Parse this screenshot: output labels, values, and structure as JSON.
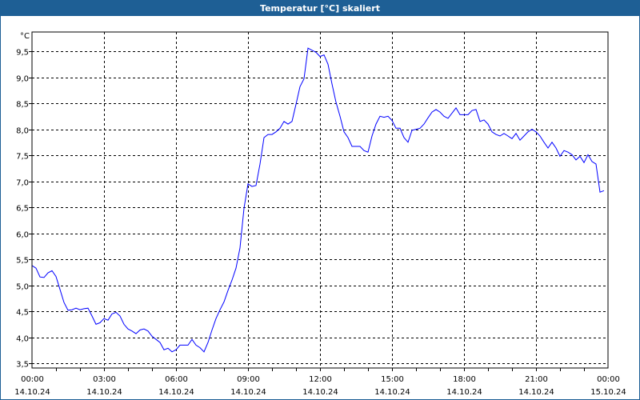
{
  "window": {
    "title": "Temperatur [°C] skaliert",
    "titlebar_color": "#1e5f95"
  },
  "chart_data": {
    "type": "line",
    "title": "Temperatur [°C] skaliert",
    "ylabel": "°C",
    "xlabel": "",
    "ylim": [
      3.41,
      9.87
    ],
    "yticks": [
      3.5,
      4.0,
      4.5,
      5.0,
      5.5,
      6.0,
      6.5,
      7.0,
      7.5,
      8.0,
      8.5,
      9.0,
      9.5
    ],
    "ytick_labels": [
      "3,5",
      "4,0",
      "4,5",
      "5,0",
      "5,5",
      "6,0",
      "6,5",
      "7,0",
      "7,5",
      "8,0",
      "8,5",
      "9,0",
      "9,5"
    ],
    "xlim_hours": [
      0,
      24
    ],
    "xticks": [
      {
        "hour": 0,
        "time": "00:00",
        "date": "14.10.24"
      },
      {
        "hour": 3,
        "time": "03:00",
        "date": "14.10.24"
      },
      {
        "hour": 6,
        "time": "06:00",
        "date": "14.10.24"
      },
      {
        "hour": 9,
        "time": "09:00",
        "date": "14.10.24"
      },
      {
        "hour": 12,
        "time": "12:00",
        "date": "14.10.24"
      },
      {
        "hour": 15,
        "time": "15:00",
        "date": "14.10.24"
      },
      {
        "hour": 18,
        "time": "18:00",
        "date": "14.10.24"
      },
      {
        "hour": 21,
        "time": "21:00",
        "date": "14.10.24"
      },
      {
        "hour": 24,
        "time": "00:00",
        "date": "15.10.24"
      }
    ],
    "grid": true,
    "series": [
      {
        "name": "Temperatur",
        "color": "#0000ff",
        "start_hour": 0,
        "interval_minutes": 10,
        "values": [
          5.38,
          5.33,
          5.16,
          5.15,
          5.24,
          5.28,
          5.17,
          4.92,
          4.67,
          4.52,
          4.53,
          4.56,
          4.53,
          4.55,
          4.56,
          4.41,
          4.25,
          4.28,
          4.36,
          4.33,
          4.45,
          4.48,
          4.41,
          4.25,
          4.16,
          4.12,
          4.07,
          4.14,
          4.16,
          4.12,
          4.02,
          3.96,
          3.9,
          3.76,
          3.79,
          3.72,
          3.76,
          3.85,
          3.85,
          3.85,
          3.96,
          3.85,
          3.8,
          3.72,
          3.9,
          4.14,
          4.36,
          4.53,
          4.68,
          4.9,
          5.1,
          5.33,
          5.72,
          6.48,
          6.95,
          6.9,
          6.92,
          7.33,
          7.84,
          7.9,
          7.9,
          7.95,
          8.02,
          8.15,
          8.1,
          8.15,
          8.48,
          8.82,
          8.97,
          9.56,
          9.52,
          9.48,
          9.4,
          9.43,
          9.25,
          8.87,
          8.52,
          8.25,
          7.95,
          7.84,
          7.67,
          7.67,
          7.67,
          7.59,
          7.56,
          7.87,
          8.1,
          8.25,
          8.23,
          8.25,
          8.17,
          8.02,
          8.02,
          7.84,
          7.75,
          7.98,
          8.0,
          8.02,
          8.1,
          8.22,
          8.33,
          8.38,
          8.33,
          8.25,
          8.21,
          8.31,
          8.41,
          8.28,
          8.28,
          8.28,
          8.36,
          8.38,
          8.15,
          8.18,
          8.1,
          7.95,
          7.9,
          7.87,
          7.92,
          7.87,
          7.82,
          7.92,
          7.79,
          7.87,
          7.95,
          8.0,
          7.95,
          7.87,
          7.75,
          7.64,
          7.75,
          7.64,
          7.48,
          7.59,
          7.56,
          7.51,
          7.41,
          7.48,
          7.36,
          7.51,
          7.38,
          7.33,
          6.79,
          6.82
        ]
      }
    ]
  }
}
